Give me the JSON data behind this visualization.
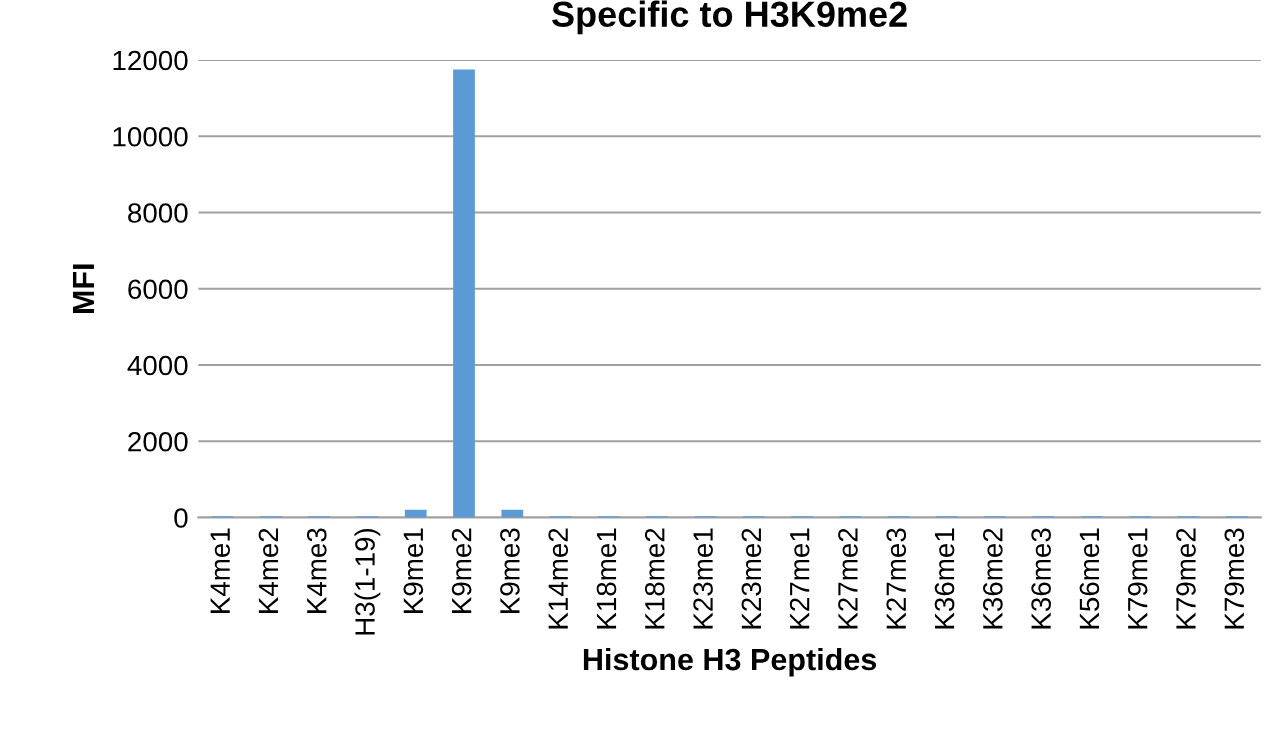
{
  "chart_data": {
    "type": "bar",
    "title": "Specific to H3K9me2",
    "xlabel": "Histone H3 Peptides",
    "ylabel": "MFI",
    "categories": [
      "K4me1",
      "K4me2",
      "K4me3",
      "H3(1-19)",
      "K9me1",
      "K9me2",
      "K9me3",
      "K14me2",
      "K18me1",
      "K18me2",
      "K23me1",
      "K23me2",
      "K27me1",
      "K27me2",
      "K27me3",
      "K36me1",
      "K36me2",
      "K36me3",
      "K56me1",
      "K79me1",
      "K79me2",
      "K79me3"
    ],
    "values": [
      30,
      30,
      30,
      30,
      200,
      11750,
      200,
      30,
      30,
      30,
      30,
      30,
      30,
      30,
      30,
      30,
      30,
      30,
      30,
      30,
      30,
      30
    ],
    "color": "#5b9bd5",
    "ylim": [
      0,
      12000
    ],
    "yticks": [
      0,
      2000,
      4000,
      6000,
      8000,
      10000,
      12000
    ],
    "grid": "y",
    "legend": false
  }
}
